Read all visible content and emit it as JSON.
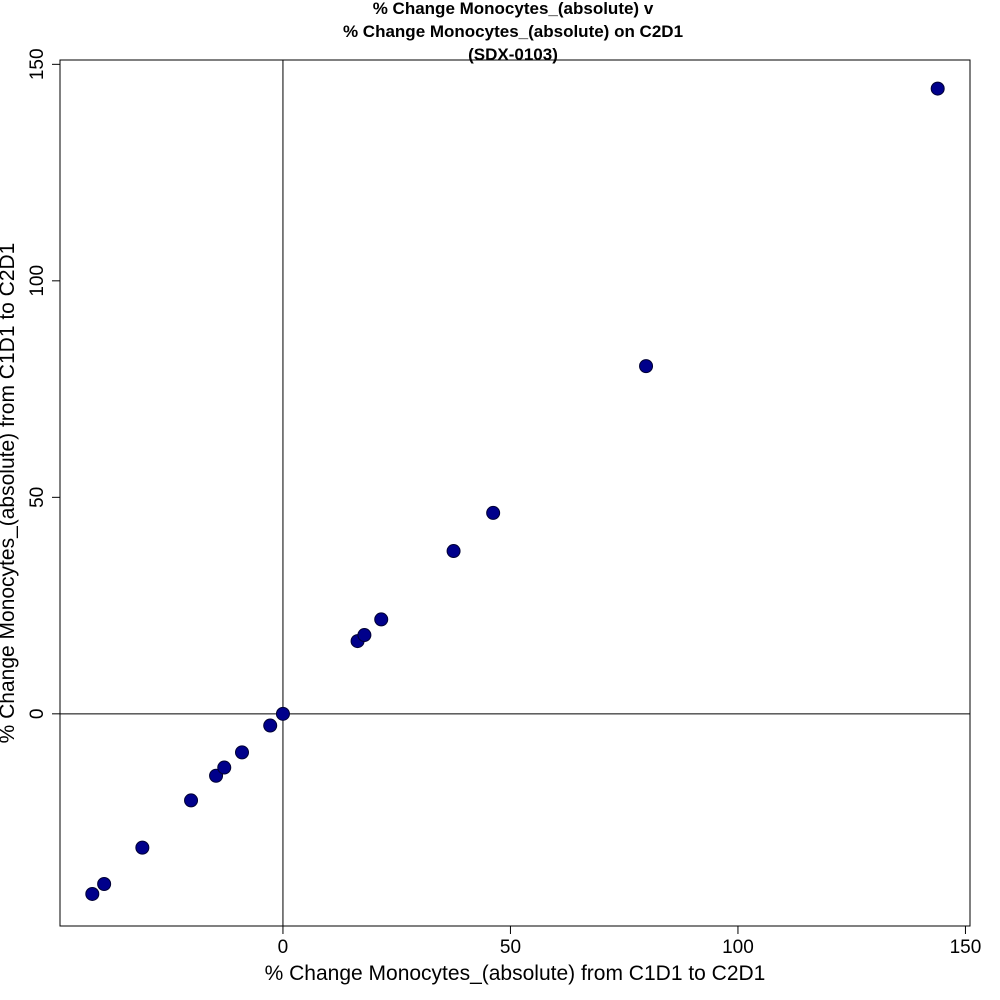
{
  "chart_data": {
    "type": "scatter",
    "title": [
      "% Change Monocytes_(absolute) v",
      "% Change Monocytes_(absolute) on C2D1",
      "(SDX-0103)"
    ],
    "xlabel": "% Change Monocytes_(absolute) from C1D1 to C2D1",
    "ylabel": "% Change Monocytes_(absolute) from C1D1 to C2D1",
    "xlim": [
      -49,
      151
    ],
    "ylim": [
      -49,
      151
    ],
    "xticks": [
      0,
      50,
      100,
      150
    ],
    "yticks": [
      0,
      50,
      100,
      150
    ],
    "reference_lines": {
      "x": 0,
      "y": 0
    },
    "grid": false,
    "legend": "none",
    "marker_color": "#00008B",
    "points": [
      {
        "x": -41.9,
        "y": -41.6
      },
      {
        "x": -39.3,
        "y": -39.3
      },
      {
        "x": -30.9,
        "y": -30.9
      },
      {
        "x": -20.2,
        "y": -20.0
      },
      {
        "x": -14.7,
        "y": -14.3
      },
      {
        "x": -12.9,
        "y": -12.4
      },
      {
        "x": -9.0,
        "y": -8.9
      },
      {
        "x": -2.8,
        "y": -2.7
      },
      {
        "x": 0.0,
        "y": 0.0
      },
      {
        "x": 16.4,
        "y": 16.8
      },
      {
        "x": 17.9,
        "y": 18.2
      },
      {
        "x": 21.6,
        "y": 21.8
      },
      {
        "x": 37.5,
        "y": 37.6
      },
      {
        "x": 46.2,
        "y": 46.4
      },
      {
        "x": 79.8,
        "y": 80.3
      },
      {
        "x": 143.9,
        "y": 144.4
      }
    ]
  }
}
